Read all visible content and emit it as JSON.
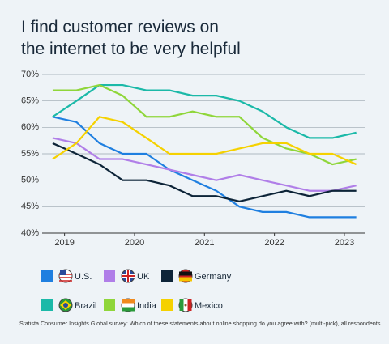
{
  "chart_data": {
    "type": "line",
    "title_lines": [
      "I find customer reviews on",
      "the internet to be very helpful"
    ],
    "x": [
      2018.83,
      2019.17,
      2019.5,
      2019.83,
      2020.17,
      2020.5,
      2020.83,
      2021.17,
      2021.5,
      2021.83,
      2022.17,
      2022.5,
      2022.83,
      2023.17
    ],
    "xlim": [
      2018.68,
      2023.29
    ],
    "xticks": [
      2019,
      2020,
      2021,
      2022,
      2023
    ],
    "ylim": [
      40,
      70
    ],
    "yticks": [
      {
        "value": 40,
        "label": "40%"
      },
      {
        "value": 45,
        "label": "45%"
      },
      {
        "value": 50,
        "label": "50%"
      },
      {
        "value": 55,
        "label": "55%"
      },
      {
        "value": 60,
        "label": "60%"
      },
      {
        "value": 65,
        "label": "65%"
      },
      {
        "value": 70,
        "label": "70%"
      }
    ],
    "grid": true,
    "series": [
      {
        "name": "U.S.",
        "color": "#1f7fe0",
        "values": [
          62,
          61,
          57,
          55,
          55,
          52,
          50,
          48,
          45,
          44,
          44,
          43,
          43,
          43
        ]
      },
      {
        "name": "UK",
        "color": "#b07ee8",
        "values": [
          58,
          57,
          54,
          54,
          53,
          52,
          51,
          50,
          51,
          50,
          49,
          48,
          48,
          49
        ]
      },
      {
        "name": "Germany",
        "color": "#0d2438",
        "values": [
          57,
          55,
          53,
          50,
          50,
          49,
          47,
          47,
          46,
          47,
          48,
          47,
          48,
          48
        ]
      },
      {
        "name": "Brazil",
        "color": "#1bb9a8",
        "values": [
          62,
          65,
          68,
          68,
          67,
          67,
          66,
          66,
          65,
          63,
          60,
          58,
          58,
          59
        ]
      },
      {
        "name": "India",
        "color": "#8fd63a",
        "values": [
          67,
          67,
          68,
          66,
          62,
          62,
          63,
          62,
          62,
          58,
          56,
          55,
          53,
          54
        ]
      },
      {
        "name": "Mexico",
        "color": "#f5d100",
        "values": [
          54,
          57,
          62,
          61,
          58,
          55,
          55,
          55,
          56,
          57,
          57,
          55,
          55,
          53
        ]
      }
    ],
    "footnote": "Statista Consumer Insights Global survey: Which of these statements about online shopping do you agree with? (multi-pick), all respondents"
  }
}
